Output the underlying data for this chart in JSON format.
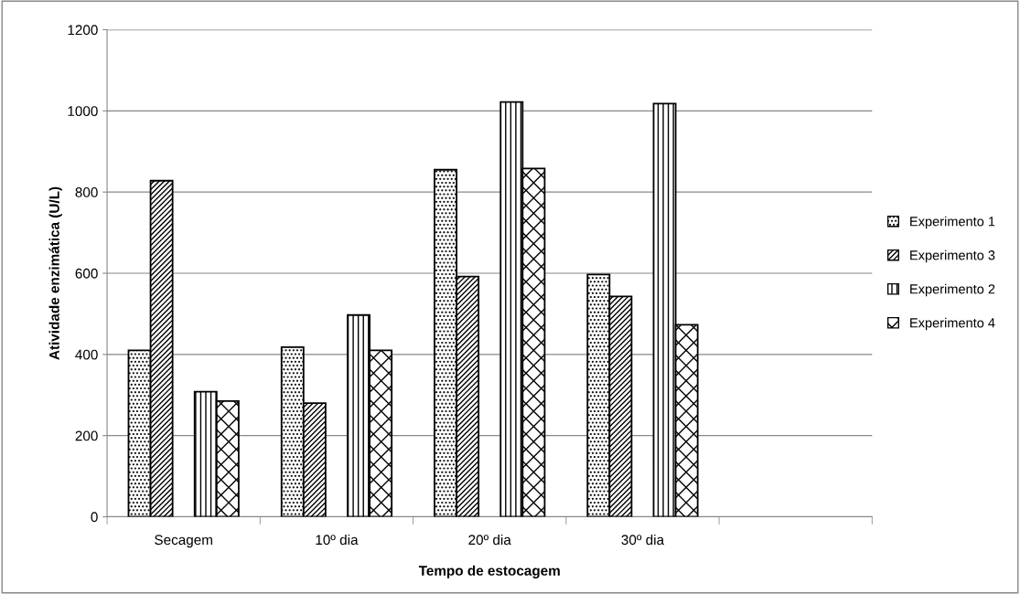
{
  "chart_data": {
    "type": "bar",
    "xlabel": "Tempo de estocagem",
    "ylabel": "Atividade enzimática (U/L)",
    "categories": [
      "Secagem",
      "10º dia",
      "20º dia",
      "30º dia",
      null
    ],
    "series": [
      {
        "name": "Experimento 1",
        "color": "#000000",
        "values": [
          410,
          418,
          855,
          597,
          null
        ]
      },
      {
        "name": "Experimento 3",
        "color": "#000000",
        "values": [
          828,
          280,
          592,
          543,
          null
        ]
      },
      {
        "color": "#000000",
        "values": [
          null,
          null,
          null,
          null,
          null
        ]
      },
      {
        "name": "Experimento 2",
        "color": "#000000",
        "values": [
          308,
          497,
          1022,
          1018,
          null
        ]
      },
      {
        "name": "Experimento 4",
        "color": "#000000",
        "values": [
          285,
          410,
          858,
          473,
          null
        ]
      }
    ],
    "ylim": [
      0,
      1200
    ],
    "yticks": [
      0,
      200,
      400,
      600,
      800,
      1000,
      1200
    ],
    "grid": "y",
    "legend": "right"
  }
}
